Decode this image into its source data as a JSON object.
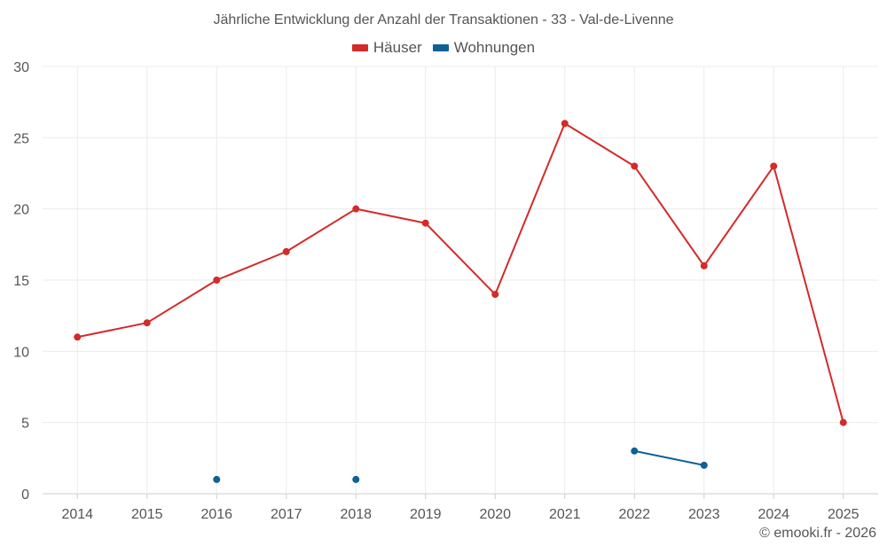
{
  "chart_data": {
    "type": "line",
    "title": "Jährliche Entwicklung der Anzahl der Transaktionen - 33 - Val-de-Livenne",
    "categories": [
      "2014",
      "2015",
      "2016",
      "2017",
      "2018",
      "2019",
      "2020",
      "2021",
      "2022",
      "2023",
      "2024",
      "2025"
    ],
    "ylim": [
      0,
      30
    ],
    "yticks": [
      "0",
      "5",
      "10",
      "15",
      "20",
      "25",
      "30"
    ],
    "grid": true,
    "legend_position": "top-center",
    "series": [
      {
        "name": "Häuser",
        "color": "#d42a2a",
        "values": [
          11,
          12,
          15,
          17,
          20,
          19,
          14,
          26,
          23,
          16,
          23,
          5
        ]
      },
      {
        "name": "Wohnungen",
        "color": "#0f6095",
        "values": [
          null,
          null,
          1,
          null,
          1,
          null,
          null,
          null,
          3,
          2,
          null,
          null
        ]
      }
    ],
    "xlabel": "",
    "ylabel": ""
  },
  "credit": "© emooki.fr - 2026"
}
